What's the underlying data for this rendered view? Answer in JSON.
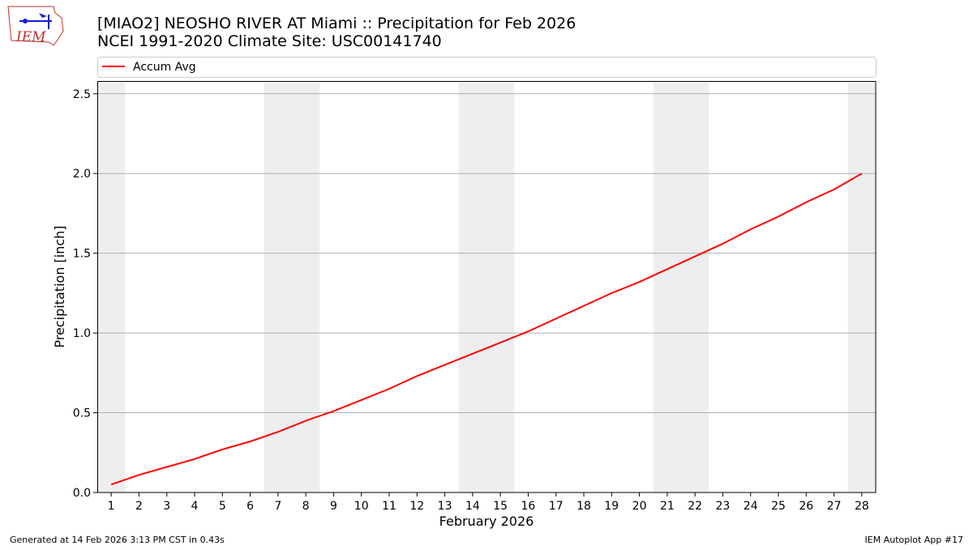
{
  "logo_text": "IEM",
  "footer": {
    "left": "Generated at 14 Feb 2026 3:13 PM CST in 0.43s",
    "right": "IEM Autoplot App #17"
  },
  "chart_data": {
    "type": "line",
    "title": "[MIAO2] NEOSHO RIVER  AT Miami :: Precipitation for Feb 2026",
    "subtitle": "NCEI 1991-2020 Climate Site: USC00141740",
    "x_label": "February 2026",
    "y_label": "Precipitation [inch]",
    "x": [
      1,
      2,
      3,
      4,
      5,
      6,
      7,
      8,
      9,
      10,
      11,
      12,
      13,
      14,
      15,
      16,
      17,
      18,
      19,
      20,
      21,
      22,
      23,
      24,
      25,
      26,
      27,
      28
    ],
    "series": [
      {
        "name": "Accum Avg",
        "color": "#ff0000",
        "values": [
          0.05,
          0.11,
          0.16,
          0.21,
          0.27,
          0.32,
          0.38,
          0.45,
          0.51,
          0.58,
          0.65,
          0.73,
          0.8,
          0.87,
          0.94,
          1.01,
          1.09,
          1.17,
          1.25,
          1.32,
          1.4,
          1.48,
          1.56,
          1.65,
          1.73,
          1.82,
          1.9,
          2.0
        ]
      }
    ],
    "shaded_ranges": [
      [
        0.5,
        1.5
      ],
      [
        6.5,
        8.5
      ],
      [
        13.5,
        15.5
      ],
      [
        20.5,
        22.5
      ],
      [
        27.5,
        28.5
      ]
    ],
    "shade_color": "#eeeeee",
    "xlim": [
      0.5,
      28.5
    ],
    "xticks": [
      1,
      2,
      3,
      4,
      5,
      6,
      7,
      8,
      9,
      10,
      11,
      12,
      13,
      14,
      15,
      16,
      17,
      18,
      19,
      20,
      21,
      22,
      23,
      24,
      25,
      26,
      27,
      28
    ],
    "ylim": [
      0,
      2.58
    ],
    "yticks": [
      {
        "value": 0,
        "label": "0.0"
      },
      {
        "value": 0.5,
        "label": "0.5"
      },
      {
        "value": 1,
        "label": "1.0"
      },
      {
        "value": 1.5,
        "label": "1.5"
      },
      {
        "value": 2,
        "label": "2.0"
      },
      {
        "value": 2.5,
        "label": "2.5"
      }
    ],
    "grid": "y",
    "legend": "top"
  }
}
